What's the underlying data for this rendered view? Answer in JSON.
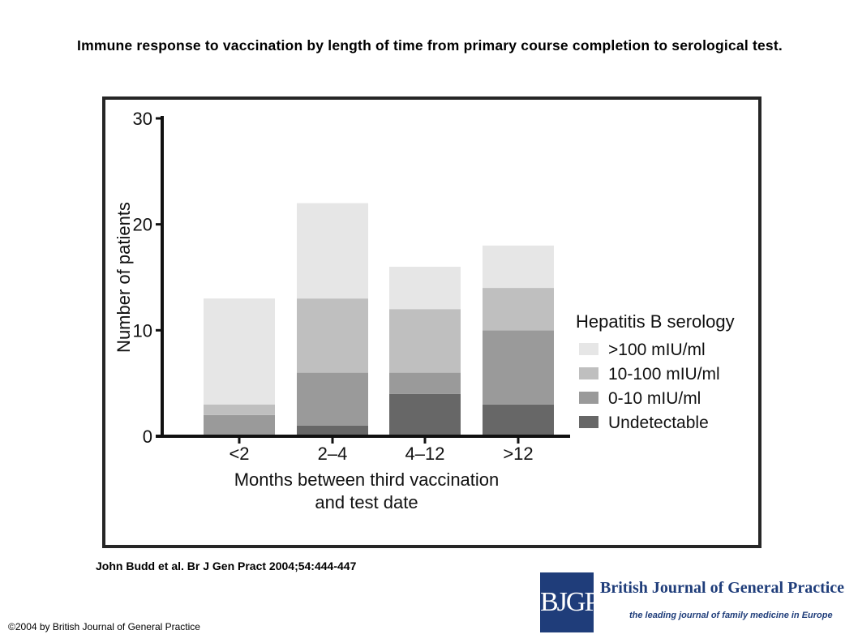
{
  "title": "Immune response to vaccination by length of time from primary course completion to serological test.",
  "citation": "John Budd et al. Br J Gen Pract 2004;54:444-447",
  "copyright": "©2004 by British Journal of General Practice",
  "logo": {
    "mark": "BJGP",
    "name": "British Journal of General Practice",
    "tagline": "the leading journal of family medicine in Europe",
    "color": "#1f3d7a"
  },
  "chart_data": {
    "type": "bar",
    "stacked": true,
    "categories": [
      "<2",
      "2–4",
      "4–12",
      ">12"
    ],
    "series": [
      {
        "name": "Undetectable",
        "values": [
          0,
          1,
          4,
          3
        ],
        "color": "#676767"
      },
      {
        "name": "0-10 mIU/ml",
        "values": [
          2,
          5,
          2,
          7
        ],
        "color": "#9a9a9a"
      },
      {
        "name": "10-100 mIU/ml",
        "values": [
          1,
          7,
          6,
          4
        ],
        "color": "#bfbfbf"
      },
      {
        "name": ">100 mIU/ml",
        "values": [
          10,
          9,
          4,
          4
        ],
        "color": "#e6e6e6"
      }
    ],
    "xlabel": "Months between third vaccination and test date",
    "xlabel_lines": [
      "Months between third vaccination",
      "and test date"
    ],
    "ylabel": "Number of patients",
    "ylim": [
      0,
      30
    ],
    "yticks": [
      0,
      10,
      20,
      30
    ],
    "legend_title": "Hepatitis B serology",
    "legend_order": [
      ">100 mIU/ml",
      "10-100 mIU/ml",
      "0-10 mIU/ml",
      "Undetectable"
    ],
    "legend_position": "right",
    "grid": false
  }
}
